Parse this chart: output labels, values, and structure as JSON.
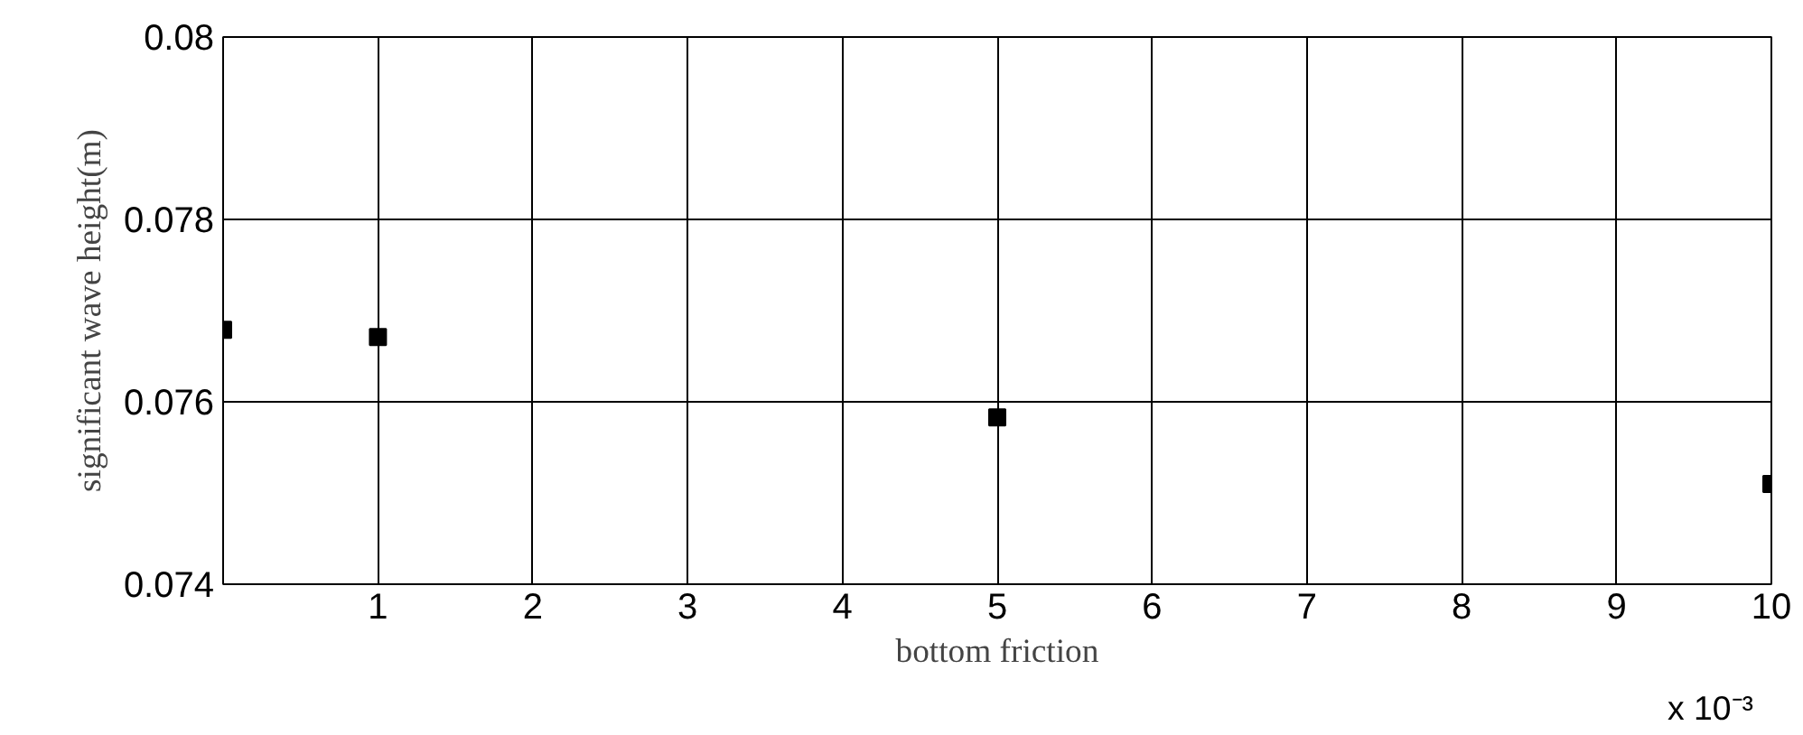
{
  "chart_data": {
    "type": "scatter",
    "xlabel": "bottom friction",
    "ylabel": "significant wave height(m)",
    "x": [
      0,
      1,
      5,
      10
    ],
    "series": [
      {
        "color": "#000000",
        "values": [
          0.07679,
          0.07671,
          0.07583,
          0.0751
        ]
      }
    ],
    "xlim": [
      0,
      10
    ],
    "ylim": [
      0.074,
      0.08
    ],
    "xticks": [
      1,
      2,
      3,
      4,
      5,
      6,
      7,
      8,
      9,
      10
    ],
    "yticks": [
      0.074,
      0.076,
      0.078,
      0.08
    ],
    "annotations": [
      "x 10⁻³"
    ],
    "grid": true,
    "marker": "square"
  }
}
